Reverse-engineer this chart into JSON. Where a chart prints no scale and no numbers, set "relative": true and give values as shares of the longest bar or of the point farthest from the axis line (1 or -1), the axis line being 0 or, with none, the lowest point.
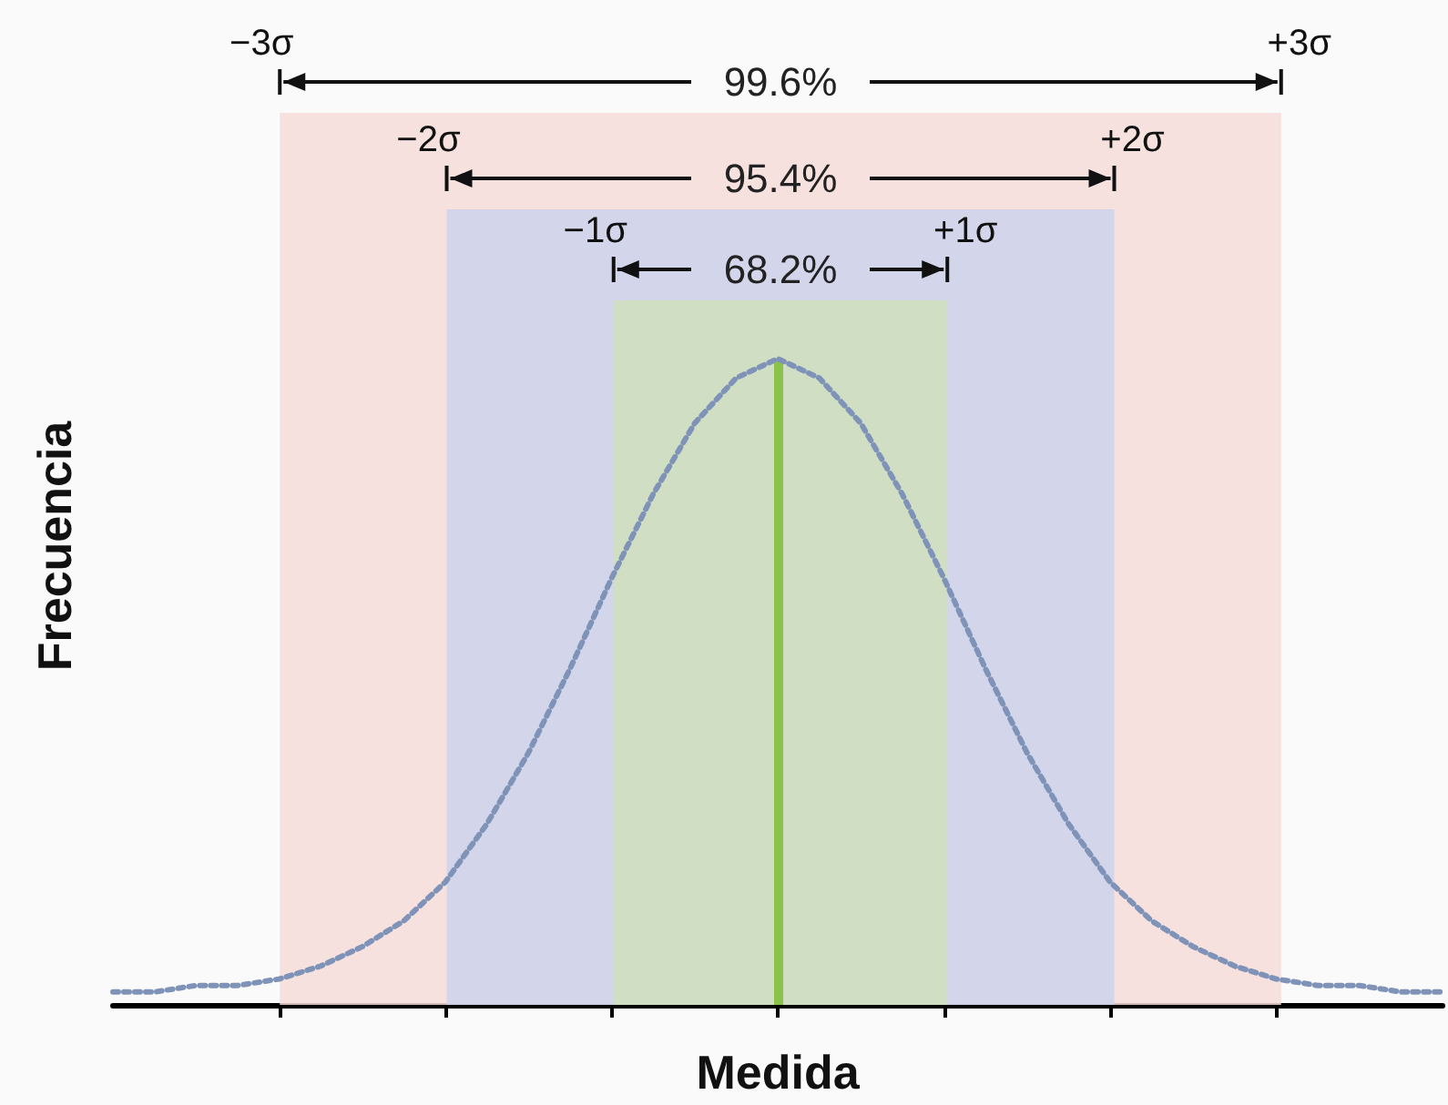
{
  "chart_data": {
    "type": "line",
    "relative": true,
    "xlabel": "Medida",
    "ylabel": "Frecuencia",
    "categories": [
      null,
      null,
      null,
      null,
      null,
      null,
      null,
      null,
      null,
      null,
      null,
      null,
      null,
      null,
      null,
      null,
      null,
      null,
      null,
      null,
      null,
      null,
      null,
      null,
      null,
      null,
      null,
      null,
      null,
      null,
      null,
      null,
      null
    ],
    "series": [
      {
        "color": "#7f93b8",
        "values": [
          0.02,
          0.02,
          0.03,
          0.03,
          0.04,
          0.06,
          0.09,
          0.13,
          0.19,
          0.28,
          0.39,
          0.52,
          0.66,
          0.79,
          0.9,
          0.97,
          1,
          0.97,
          0.9,
          0.79,
          0.66,
          0.52,
          0.39,
          0.28,
          0.19,
          0.13,
          0.09,
          0.06,
          0.04,
          0.03,
          0.03,
          0.02,
          0.02
        ]
      }
    ],
    "marker": "none",
    "line_style": "dotted",
    "annotations": [
      "−3σ",
      "+3σ",
      "99.6%",
      "−2σ",
      "+2σ",
      "95.4%",
      "−1σ",
      "+1σ",
      "68.2%"
    ]
  }
}
